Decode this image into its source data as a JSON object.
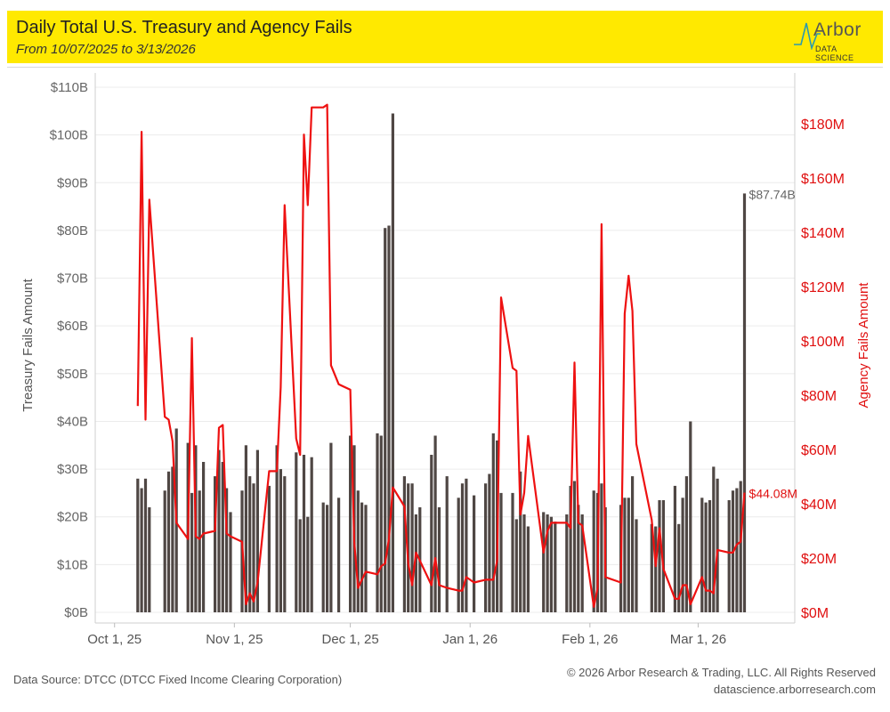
{
  "header": {
    "title": "Daily Total U.S. Treasury and Agency Fails",
    "subtitle": "From 10/07/2025 to 3/13/2026",
    "logo_word": "Arbor",
    "logo_sub": "DATA SCIENCE"
  },
  "footer": {
    "source": "Data Source: DTCC (DTCC Fixed Income Clearing Corporation)",
    "copyright": "© 2026 Arbor Research & Trading, LLC. All Rights Reserved",
    "website": "datascience.arborresearch.com"
  },
  "colors": {
    "bar": "#4f4744",
    "line": "#ee1111",
    "banner": "#ffe900"
  },
  "chart_data": {
    "type": "bar+line",
    "x_axis": {
      "range": [
        "2025-09-26",
        "2026-03-26"
      ],
      "ticks": [
        {
          "date": "2025-10-01",
          "label": "Oct 1, 25"
        },
        {
          "date": "2025-11-01",
          "label": "Nov 1, 25"
        },
        {
          "date": "2025-12-01",
          "label": "Dec 1, 25"
        },
        {
          "date": "2026-01-01",
          "label": "Jan 1, 26"
        },
        {
          "date": "2026-02-01",
          "label": "Feb 1, 26"
        },
        {
          "date": "2026-03-01",
          "label": "Mar 1, 26"
        }
      ]
    },
    "y_left": {
      "label": "Treasury Fails Amount",
      "range": [
        0,
        112
      ],
      "ticks": [
        {
          "value": 0,
          "label": "$0B"
        },
        {
          "value": 10,
          "label": "$10B"
        },
        {
          "value": 20,
          "label": "$20B"
        },
        {
          "value": 30,
          "label": "$30B"
        },
        {
          "value": 40,
          "label": "$40B"
        },
        {
          "value": 50,
          "label": "$50B"
        },
        {
          "value": 60,
          "label": "$60B"
        },
        {
          "value": 70,
          "label": "$70B"
        },
        {
          "value": 80,
          "label": "$80B"
        },
        {
          "value": 90,
          "label": "$90B"
        },
        {
          "value": 100,
          "label": "$100B"
        },
        {
          "value": 110,
          "label": "$110B"
        }
      ]
    },
    "y_right": {
      "label": "Agency Fails Amount",
      "range": [
        0,
        196
      ],
      "ticks": [
        {
          "value": 0,
          "label": "$0M"
        },
        {
          "value": 20,
          "label": "$20M"
        },
        {
          "value": 40,
          "label": "$40M"
        },
        {
          "value": 60,
          "label": "$60M"
        },
        {
          "value": 80,
          "label": "$80M"
        },
        {
          "value": 100,
          "label": "$100M"
        },
        {
          "value": 120,
          "label": "$120M"
        },
        {
          "value": 140,
          "label": "$140M"
        },
        {
          "value": 160,
          "label": "$160M"
        },
        {
          "value": 180,
          "label": "$180M"
        }
      ]
    },
    "grid": true,
    "series": [
      {
        "name": "Treasury Fails Amount",
        "type": "bar",
        "axis": "left",
        "points": [
          [
            "2025-10-07",
            28.0
          ],
          [
            "2025-10-08",
            26.0
          ],
          [
            "2025-10-09",
            28.0
          ],
          [
            "2025-10-10",
            22.0
          ],
          [
            "2025-10-14",
            25.5
          ],
          [
            "2025-10-15",
            29.5
          ],
          [
            "2025-10-16",
            30.5
          ],
          [
            "2025-10-17",
            38.5
          ],
          [
            "2025-10-20",
            35.5
          ],
          [
            "2025-10-21",
            25.0
          ],
          [
            "2025-10-22",
            35.0
          ],
          [
            "2025-10-23",
            25.5
          ],
          [
            "2025-10-24",
            31.5
          ],
          [
            "2025-10-27",
            28.5
          ],
          [
            "2025-10-28",
            34.0
          ],
          [
            "2025-10-29",
            31.5
          ],
          [
            "2025-10-30",
            26.0
          ],
          [
            "2025-10-31",
            21.0
          ],
          [
            "2025-11-03",
            25.5
          ],
          [
            "2025-11-04",
            35.0
          ],
          [
            "2025-11-05",
            28.5
          ],
          [
            "2025-11-06",
            27.0
          ],
          [
            "2025-11-07",
            34.0
          ],
          [
            "2025-11-10",
            26.5
          ],
          [
            "2025-11-12",
            35.0
          ],
          [
            "2025-11-13",
            30.0
          ],
          [
            "2025-11-14",
            28.5
          ],
          [
            "2025-11-17",
            33.5
          ],
          [
            "2025-11-18",
            19.5
          ],
          [
            "2025-11-19",
            33.0
          ],
          [
            "2025-11-20",
            20.0
          ],
          [
            "2025-11-21",
            32.5
          ],
          [
            "2025-11-24",
            23.0
          ],
          [
            "2025-11-25",
            22.5
          ],
          [
            "2025-11-26",
            35.5
          ],
          [
            "2025-11-28",
            24.0
          ],
          [
            "2025-12-01",
            37.0
          ],
          [
            "2025-12-02",
            35.0
          ],
          [
            "2025-12-03",
            25.5
          ],
          [
            "2025-12-04",
            23.0
          ],
          [
            "2025-12-05",
            22.5
          ],
          [
            "2025-12-08",
            37.5
          ],
          [
            "2025-12-09",
            37.0
          ],
          [
            "2025-12-10",
            80.5
          ],
          [
            "2025-12-11",
            81.0
          ],
          [
            "2025-12-12",
            104.5
          ],
          [
            "2025-12-15",
            28.5
          ],
          [
            "2025-12-16",
            27.0
          ],
          [
            "2025-12-17",
            27.0
          ],
          [
            "2025-12-18",
            20.5
          ],
          [
            "2025-12-19",
            22.0
          ],
          [
            "2025-12-22",
            33.0
          ],
          [
            "2025-12-23",
            37.0
          ],
          [
            "2025-12-24",
            22.0
          ],
          [
            "2025-12-26",
            28.5
          ],
          [
            "2025-12-29",
            24.0
          ],
          [
            "2025-12-30",
            27.0
          ],
          [
            "2025-12-31",
            28.0
          ],
          [
            "2026-01-02",
            24.5
          ],
          [
            "2026-01-05",
            27.0
          ],
          [
            "2026-01-06",
            29.0
          ],
          [
            "2026-01-07",
            37.5
          ],
          [
            "2026-01-08",
            36.0
          ],
          [
            "2026-01-09",
            25.0
          ],
          [
            "2026-01-12",
            25.0
          ],
          [
            "2026-01-13",
            19.5
          ],
          [
            "2026-01-14",
            29.5
          ],
          [
            "2026-01-15",
            20.5
          ],
          [
            "2026-01-16",
            18.0
          ],
          [
            "2026-01-20",
            21.0
          ],
          [
            "2026-01-21",
            20.5
          ],
          [
            "2026-01-22",
            20.0
          ],
          [
            "2026-01-23",
            19.0
          ],
          [
            "2026-01-26",
            20.5
          ],
          [
            "2026-01-27",
            26.5
          ],
          [
            "2026-01-28",
            27.5
          ],
          [
            "2026-01-29",
            22.5
          ],
          [
            "2026-01-30",
            20.5
          ],
          [
            "2026-02-02",
            25.5
          ],
          [
            "2026-02-03",
            25.0
          ],
          [
            "2026-02-04",
            27.0
          ],
          [
            "2026-02-05",
            22.0
          ],
          [
            "2026-02-09",
            22.5
          ],
          [
            "2026-02-10",
            24.0
          ],
          [
            "2026-02-11",
            24.0
          ],
          [
            "2026-02-12",
            28.5
          ],
          [
            "2026-02-13",
            19.5
          ],
          [
            "2026-02-17",
            18.5
          ],
          [
            "2026-02-18",
            18.0
          ],
          [
            "2026-02-19",
            23.5
          ],
          [
            "2026-02-20",
            23.5
          ],
          [
            "2026-02-23",
            26.5
          ],
          [
            "2026-02-24",
            18.5
          ],
          [
            "2026-02-25",
            24.0
          ],
          [
            "2026-02-26",
            28.5
          ],
          [
            "2026-02-27",
            40.0
          ],
          [
            "2026-03-02",
            24.0
          ],
          [
            "2026-03-03",
            23.0
          ],
          [
            "2026-03-04",
            23.5
          ],
          [
            "2026-03-05",
            30.5
          ],
          [
            "2026-03-06",
            28.0
          ],
          [
            "2026-03-09",
            23.5
          ],
          [
            "2026-03-10",
            25.5
          ],
          [
            "2026-03-11",
            26.0
          ],
          [
            "2026-03-12",
            27.5
          ],
          [
            "2026-03-13",
            87.74
          ]
        ]
      },
      {
        "name": "Agency Fails Amount",
        "type": "line",
        "axis": "right",
        "points": [
          [
            "2025-10-07",
            76
          ],
          [
            "2025-10-08",
            177
          ],
          [
            "2025-10-09",
            71
          ],
          [
            "2025-10-10",
            152
          ],
          [
            "2025-10-14",
            72
          ],
          [
            "2025-10-15",
            71
          ],
          [
            "2025-10-16",
            63
          ],
          [
            "2025-10-17",
            33
          ],
          [
            "2025-10-20",
            27
          ],
          [
            "2025-10-21",
            101
          ],
          [
            "2025-10-22",
            28
          ],
          [
            "2025-10-23",
            27
          ],
          [
            "2025-10-24",
            29
          ],
          [
            "2025-10-27",
            30
          ],
          [
            "2025-10-28",
            68
          ],
          [
            "2025-10-29",
            69
          ],
          [
            "2025-10-30",
            29
          ],
          [
            "2025-10-31",
            28
          ],
          [
            "2025-11-03",
            26
          ],
          [
            "2025-11-04",
            3
          ],
          [
            "2025-11-05",
            7
          ],
          [
            "2025-11-06",
            4
          ],
          [
            "2025-11-07",
            11
          ],
          [
            "2025-11-10",
            52
          ],
          [
            "2025-11-12",
            52
          ],
          [
            "2025-11-13",
            83
          ],
          [
            "2025-11-14",
            150
          ],
          [
            "2025-11-17",
            64
          ],
          [
            "2025-11-18",
            58
          ],
          [
            "2025-11-19",
            176
          ],
          [
            "2025-11-20",
            150
          ],
          [
            "2025-11-21",
            186
          ],
          [
            "2025-11-24",
            186
          ],
          [
            "2025-11-25",
            187
          ],
          [
            "2025-11-26",
            91
          ],
          [
            "2025-11-28",
            84
          ],
          [
            "2025-12-01",
            82
          ],
          [
            "2025-12-02",
            26
          ],
          [
            "2025-12-03",
            9
          ],
          [
            "2025-12-04",
            12
          ],
          [
            "2025-12-05",
            15
          ],
          [
            "2025-12-08",
            14
          ],
          [
            "2025-12-09",
            17
          ],
          [
            "2025-12-10",
            18
          ],
          [
            "2025-12-11",
            27
          ],
          [
            "2025-12-12",
            46
          ],
          [
            "2025-12-15",
            39
          ],
          [
            "2025-12-16",
            18
          ],
          [
            "2025-12-17",
            10
          ],
          [
            "2025-12-18",
            22
          ],
          [
            "2025-12-19",
            19
          ],
          [
            "2025-12-22",
            10
          ],
          [
            "2025-12-23",
            20
          ],
          [
            "2025-12-24",
            10
          ],
          [
            "2025-12-26",
            9
          ],
          [
            "2025-12-29",
            8
          ],
          [
            "2025-12-30",
            8
          ],
          [
            "2025-12-31",
            13
          ],
          [
            "2026-01-02",
            11
          ],
          [
            "2026-01-05",
            12
          ],
          [
            "2026-01-06",
            12
          ],
          [
            "2026-01-07",
            12
          ],
          [
            "2026-01-08",
            19
          ],
          [
            "2026-01-09",
            116
          ],
          [
            "2026-01-12",
            90
          ],
          [
            "2026-01-13",
            89
          ],
          [
            "2026-01-14",
            36
          ],
          [
            "2026-01-15",
            44
          ],
          [
            "2026-01-16",
            65
          ],
          [
            "2026-01-20",
            22
          ],
          [
            "2026-01-21",
            30
          ],
          [
            "2026-01-22",
            33
          ],
          [
            "2026-01-23",
            33
          ],
          [
            "2026-01-26",
            33
          ],
          [
            "2026-01-27",
            31
          ],
          [
            "2026-01-28",
            92
          ],
          [
            "2026-01-29",
            33
          ],
          [
            "2026-01-30",
            32
          ],
          [
            "2026-02-02",
            2
          ],
          [
            "2026-02-03",
            9
          ],
          [
            "2026-02-04",
            143
          ],
          [
            "2026-02-05",
            13
          ],
          [
            "2026-02-09",
            11
          ],
          [
            "2026-02-10",
            110
          ],
          [
            "2026-02-11",
            124
          ],
          [
            "2026-02-12",
            111
          ],
          [
            "2026-02-13",
            62
          ],
          [
            "2026-02-17",
            34
          ],
          [
            "2026-02-18",
            17
          ],
          [
            "2026-02-19",
            31
          ],
          [
            "2026-02-20",
            16
          ],
          [
            "2026-02-23",
            5
          ],
          [
            "2026-02-24",
            5
          ],
          [
            "2026-02-25",
            10
          ],
          [
            "2026-02-26",
            10
          ],
          [
            "2026-02-27",
            3
          ],
          [
            "2026-03-02",
            13
          ],
          [
            "2026-03-03",
            8
          ],
          [
            "2026-03-04",
            8
          ],
          [
            "2026-03-05",
            7
          ],
          [
            "2026-03-06",
            23
          ],
          [
            "2026-03-09",
            22
          ],
          [
            "2026-03-10",
            22
          ],
          [
            "2026-03-11",
            25
          ],
          [
            "2026-03-12",
            26
          ],
          [
            "2026-03-13",
            44.08
          ]
        ]
      }
    ],
    "annotations": [
      {
        "series": "Treasury Fails Amount",
        "date": "2026-03-13",
        "label": "$87.74B"
      },
      {
        "series": "Agency Fails Amount",
        "date": "2026-03-13",
        "label": "$44.08M"
      }
    ]
  }
}
